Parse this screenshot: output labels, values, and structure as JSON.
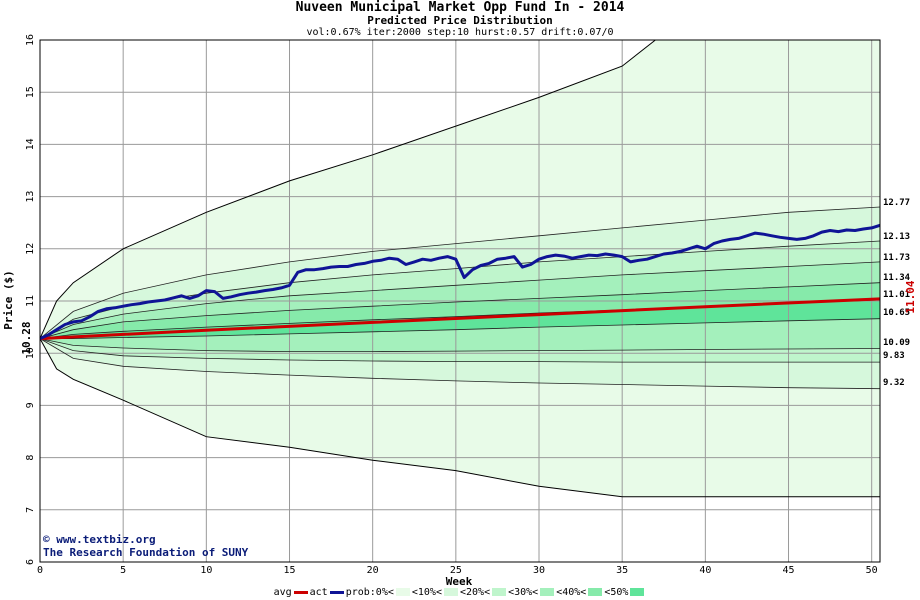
{
  "title": "Nuveen Municipal Market Opp Fund In - 2014",
  "subtitle": "Predicted Price Distribution",
  "params": "vol:0.67% iter:2000 step:10 hurst:0.57 drift:0.07/0",
  "credit_line1": "© www.textbiz.org",
  "credit_line2": "The Research Foundation of SUNY",
  "colors": {
    "avg": "#cc0000",
    "act": "#0f1496",
    "band0": "#e8fbe8",
    "band10": "#d6f8dc",
    "band20": "#bff5cc",
    "band30": "#a4f0bc",
    "band40": "#86eaaa",
    "band50": "#5fe49a",
    "grid": "#9a9a9a",
    "start_label": "#000000",
    "end_label": "#cc0000"
  },
  "legend": [
    {
      "label": "avg",
      "kind": "line",
      "color_key": "avg"
    },
    {
      "label": "act",
      "kind": "line",
      "color_key": "act"
    },
    {
      "label": "prob:0%<",
      "kind": "swatch",
      "color_key": "band0"
    },
    {
      "label": "<10%<",
      "kind": "swatch",
      "color_key": "band10"
    },
    {
      "label": "<20%<",
      "kind": "swatch",
      "color_key": "band20"
    },
    {
      "label": "<30%<",
      "kind": "swatch",
      "color_key": "band30"
    },
    {
      "label": "<40%<",
      "kind": "swatch",
      "color_key": "band40"
    },
    {
      "label": "<50%",
      "kind": "swatch",
      "color_key": "band50"
    }
  ],
  "chart_data": {
    "type": "line",
    "title": "Nuveen Municipal Market Opp Fund In - 2014",
    "subtitle": "Predicted Price Distribution",
    "xlabel": "Week",
    "ylabel": "Price ($)",
    "xlim": [
      0,
      50.5
    ],
    "ylim": [
      6,
      16
    ],
    "x_ticks": [
      0,
      5,
      10,
      15,
      20,
      25,
      30,
      35,
      40,
      45,
      50
    ],
    "y_ticks": [
      6,
      7,
      8,
      9,
      10,
      11,
      12,
      13,
      14,
      15,
      16
    ],
    "grid": true,
    "start_price_label": "10.28",
    "end_price_label": "11.04",
    "right_labels": [
      "12.77",
      "12.13",
      "11.73",
      "11.34",
      "11.01",
      "10.65",
      "10.09",
      "9.83",
      "9.32"
    ],
    "envelope": {
      "upper": [
        [
          0,
          10.28
        ],
        [
          1,
          11.0
        ],
        [
          2,
          11.35
        ],
        [
          5,
          12.0
        ],
        [
          10,
          12.7
        ],
        [
          15,
          13.3
        ],
        [
          20,
          13.8
        ],
        [
          25,
          14.35
        ],
        [
          30,
          14.9
        ],
        [
          35,
          15.5
        ],
        [
          37,
          16.0
        ]
      ],
      "lower": [
        [
          0,
          10.28
        ],
        [
          1,
          9.7
        ],
        [
          2,
          9.5
        ],
        [
          5,
          9.1
        ],
        [
          10,
          8.4
        ],
        [
          15,
          8.2
        ],
        [
          20,
          7.95
        ],
        [
          25,
          7.75
        ],
        [
          30,
          7.45
        ],
        [
          35,
          7.25
        ],
        [
          50.5,
          7.25
        ]
      ]
    },
    "quantile_curves": [
      {
        "name": "12.77",
        "points": [
          [
            0,
            10.28
          ],
          [
            2,
            10.8
          ],
          [
            5,
            11.15
          ],
          [
            10,
            11.5
          ],
          [
            15,
            11.75
          ],
          [
            20,
            11.95
          ],
          [
            25,
            12.1
          ],
          [
            30,
            12.25
          ],
          [
            35,
            12.4
          ],
          [
            40,
            12.55
          ],
          [
            45,
            12.7
          ],
          [
            50.5,
            12.8
          ]
        ]
      },
      {
        "name": "12.13",
        "points": [
          [
            0,
            10.28
          ],
          [
            2,
            10.65
          ],
          [
            5,
            10.9
          ],
          [
            10,
            11.15
          ],
          [
            15,
            11.35
          ],
          [
            20,
            11.5
          ],
          [
            25,
            11.62
          ],
          [
            30,
            11.75
          ],
          [
            35,
            11.85
          ],
          [
            40,
            11.95
          ],
          [
            45,
            12.05
          ],
          [
            50.5,
            12.15
          ]
        ]
      },
      {
        "name": "11.73",
        "points": [
          [
            0,
            10.28
          ],
          [
            2,
            10.55
          ],
          [
            5,
            10.75
          ],
          [
            10,
            10.95
          ],
          [
            15,
            11.1
          ],
          [
            20,
            11.2
          ],
          [
            25,
            11.3
          ],
          [
            30,
            11.4
          ],
          [
            35,
            11.5
          ],
          [
            40,
            11.58
          ],
          [
            45,
            11.66
          ],
          [
            50.5,
            11.75
          ]
        ]
      },
      {
        "name": "11.34",
        "points": [
          [
            0,
            10.28
          ],
          [
            2,
            10.45
          ],
          [
            5,
            10.6
          ],
          [
            10,
            10.72
          ],
          [
            15,
            10.82
          ],
          [
            20,
            10.9
          ],
          [
            25,
            10.98
          ],
          [
            30,
            11.05
          ],
          [
            35,
            11.12
          ],
          [
            40,
            11.2
          ],
          [
            45,
            11.27
          ],
          [
            50.5,
            11.35
          ]
        ]
      },
      {
        "name": "11.01",
        "points": [
          [
            0,
            10.28
          ],
          [
            2,
            10.36
          ],
          [
            5,
            10.42
          ],
          [
            10,
            10.5
          ],
          [
            15,
            10.57
          ],
          [
            20,
            10.64
          ],
          [
            25,
            10.7
          ],
          [
            30,
            10.77
          ],
          [
            35,
            10.83
          ],
          [
            40,
            10.9
          ],
          [
            45,
            10.96
          ],
          [
            50.5,
            11.02
          ]
        ]
      },
      {
        "name": "10.65",
        "points": [
          [
            0,
            10.28
          ],
          [
            2,
            10.28
          ],
          [
            5,
            10.3
          ],
          [
            10,
            10.33
          ],
          [
            15,
            10.37
          ],
          [
            20,
            10.41
          ],
          [
            25,
            10.45
          ],
          [
            30,
            10.5
          ],
          [
            35,
            10.54
          ],
          [
            40,
            10.58
          ],
          [
            45,
            10.62
          ],
          [
            50.5,
            10.66
          ]
        ]
      },
      {
        "name": "10.09",
        "points": [
          [
            0,
            10.28
          ],
          [
            2,
            10.15
          ],
          [
            5,
            10.1
          ],
          [
            10,
            10.05
          ],
          [
            15,
            10.03
          ],
          [
            20,
            10.03
          ],
          [
            25,
            10.04
          ],
          [
            30,
            10.05
          ],
          [
            35,
            10.06
          ],
          [
            40,
            10.07
          ],
          [
            45,
            10.08
          ],
          [
            50.5,
            10.09
          ]
        ]
      },
      {
        "name": "9.83",
        "points": [
          [
            0,
            10.28
          ],
          [
            2,
            10.05
          ],
          [
            5,
            9.95
          ],
          [
            10,
            9.9
          ],
          [
            15,
            9.87
          ],
          [
            20,
            9.85
          ],
          [
            25,
            9.84
          ],
          [
            30,
            9.84
          ],
          [
            35,
            9.83
          ],
          [
            40,
            9.83
          ],
          [
            45,
            9.83
          ],
          [
            50.5,
            9.83
          ]
        ]
      },
      {
        "name": "9.32",
        "points": [
          [
            0,
            10.28
          ],
          [
            2,
            9.9
          ],
          [
            5,
            9.75
          ],
          [
            10,
            9.65
          ],
          [
            15,
            9.58
          ],
          [
            20,
            9.52
          ],
          [
            25,
            9.47
          ],
          [
            30,
            9.43
          ],
          [
            35,
            9.4
          ],
          [
            40,
            9.37
          ],
          [
            45,
            9.34
          ],
          [
            50.5,
            9.32
          ]
        ]
      }
    ],
    "series": [
      {
        "name": "avg",
        "points": [
          [
            0,
            10.28
          ],
          [
            10,
            10.44
          ],
          [
            20,
            10.59
          ],
          [
            30,
            10.74
          ],
          [
            40,
            10.89
          ],
          [
            50.5,
            11.04
          ]
        ]
      },
      {
        "name": "act",
        "points": [
          [
            0,
            10.28
          ],
          [
            0.5,
            10.35
          ],
          [
            1,
            10.45
          ],
          [
            1.5,
            10.55
          ],
          [
            2,
            10.6
          ],
          [
            2.5,
            10.62
          ],
          [
            3,
            10.7
          ],
          [
            3.5,
            10.8
          ],
          [
            4,
            10.85
          ],
          [
            4.5,
            10.87
          ],
          [
            5,
            10.9
          ],
          [
            5.5,
            10.93
          ],
          [
            6,
            10.95
          ],
          [
            6.5,
            10.98
          ],
          [
            7,
            11.0
          ],
          [
            7.5,
            11.02
          ],
          [
            8,
            11.06
          ],
          [
            8.5,
            11.1
          ],
          [
            9,
            11.05
          ],
          [
            9.5,
            11.1
          ],
          [
            10,
            11.2
          ],
          [
            10.5,
            11.18
          ],
          [
            11,
            11.05
          ],
          [
            11.5,
            11.08
          ],
          [
            12,
            11.12
          ],
          [
            12.5,
            11.15
          ],
          [
            13,
            11.17
          ],
          [
            13.5,
            11.2
          ],
          [
            14,
            11.22
          ],
          [
            14.5,
            11.25
          ],
          [
            15,
            11.3
          ],
          [
            15.5,
            11.55
          ],
          [
            16,
            11.6
          ],
          [
            16.5,
            11.6
          ],
          [
            17,
            11.62
          ],
          [
            17.5,
            11.65
          ],
          [
            18,
            11.66
          ],
          [
            18.5,
            11.66
          ],
          [
            19,
            11.7
          ],
          [
            19.5,
            11.72
          ],
          [
            20,
            11.76
          ],
          [
            20.5,
            11.78
          ],
          [
            21,
            11.82
          ],
          [
            21.5,
            11.8
          ],
          [
            22,
            11.7
          ],
          [
            22.5,
            11.75
          ],
          [
            23,
            11.8
          ],
          [
            23.5,
            11.78
          ],
          [
            24,
            11.82
          ],
          [
            24.5,
            11.85
          ],
          [
            25,
            11.8
          ],
          [
            25.5,
            11.45
          ],
          [
            26,
            11.6
          ],
          [
            26.5,
            11.68
          ],
          [
            27,
            11.72
          ],
          [
            27.5,
            11.8
          ],
          [
            28,
            11.82
          ],
          [
            28.5,
            11.85
          ],
          [
            29,
            11.65
          ],
          [
            29.5,
            11.7
          ],
          [
            30,
            11.8
          ],
          [
            30.5,
            11.85
          ],
          [
            31,
            11.88
          ],
          [
            31.5,
            11.86
          ],
          [
            32,
            11.82
          ],
          [
            32.5,
            11.85
          ],
          [
            33,
            11.88
          ],
          [
            33.5,
            11.87
          ],
          [
            34,
            11.9
          ],
          [
            34.5,
            11.88
          ],
          [
            35,
            11.85
          ],
          [
            35.5,
            11.75
          ],
          [
            36,
            11.78
          ],
          [
            36.5,
            11.8
          ],
          [
            37,
            11.85
          ],
          [
            37.5,
            11.9
          ],
          [
            38,
            11.92
          ],
          [
            38.5,
            11.95
          ],
          [
            39,
            12.0
          ],
          [
            39.5,
            12.05
          ],
          [
            40,
            12.0
          ],
          [
            40.5,
            12.1
          ],
          [
            41,
            12.15
          ],
          [
            41.5,
            12.18
          ],
          [
            42,
            12.2
          ],
          [
            42.5,
            12.25
          ],
          [
            43,
            12.3
          ],
          [
            43.5,
            12.28
          ],
          [
            44,
            12.25
          ],
          [
            44.5,
            12.22
          ],
          [
            45,
            12.2
          ],
          [
            45.5,
            12.18
          ],
          [
            46,
            12.2
          ],
          [
            46.5,
            12.25
          ],
          [
            47,
            12.32
          ],
          [
            47.5,
            12.35
          ],
          [
            48,
            12.33
          ],
          [
            48.5,
            12.36
          ],
          [
            49,
            12.35
          ],
          [
            49.5,
            12.38
          ],
          [
            50,
            12.4
          ],
          [
            50.5,
            12.45
          ]
        ]
      }
    ]
  }
}
